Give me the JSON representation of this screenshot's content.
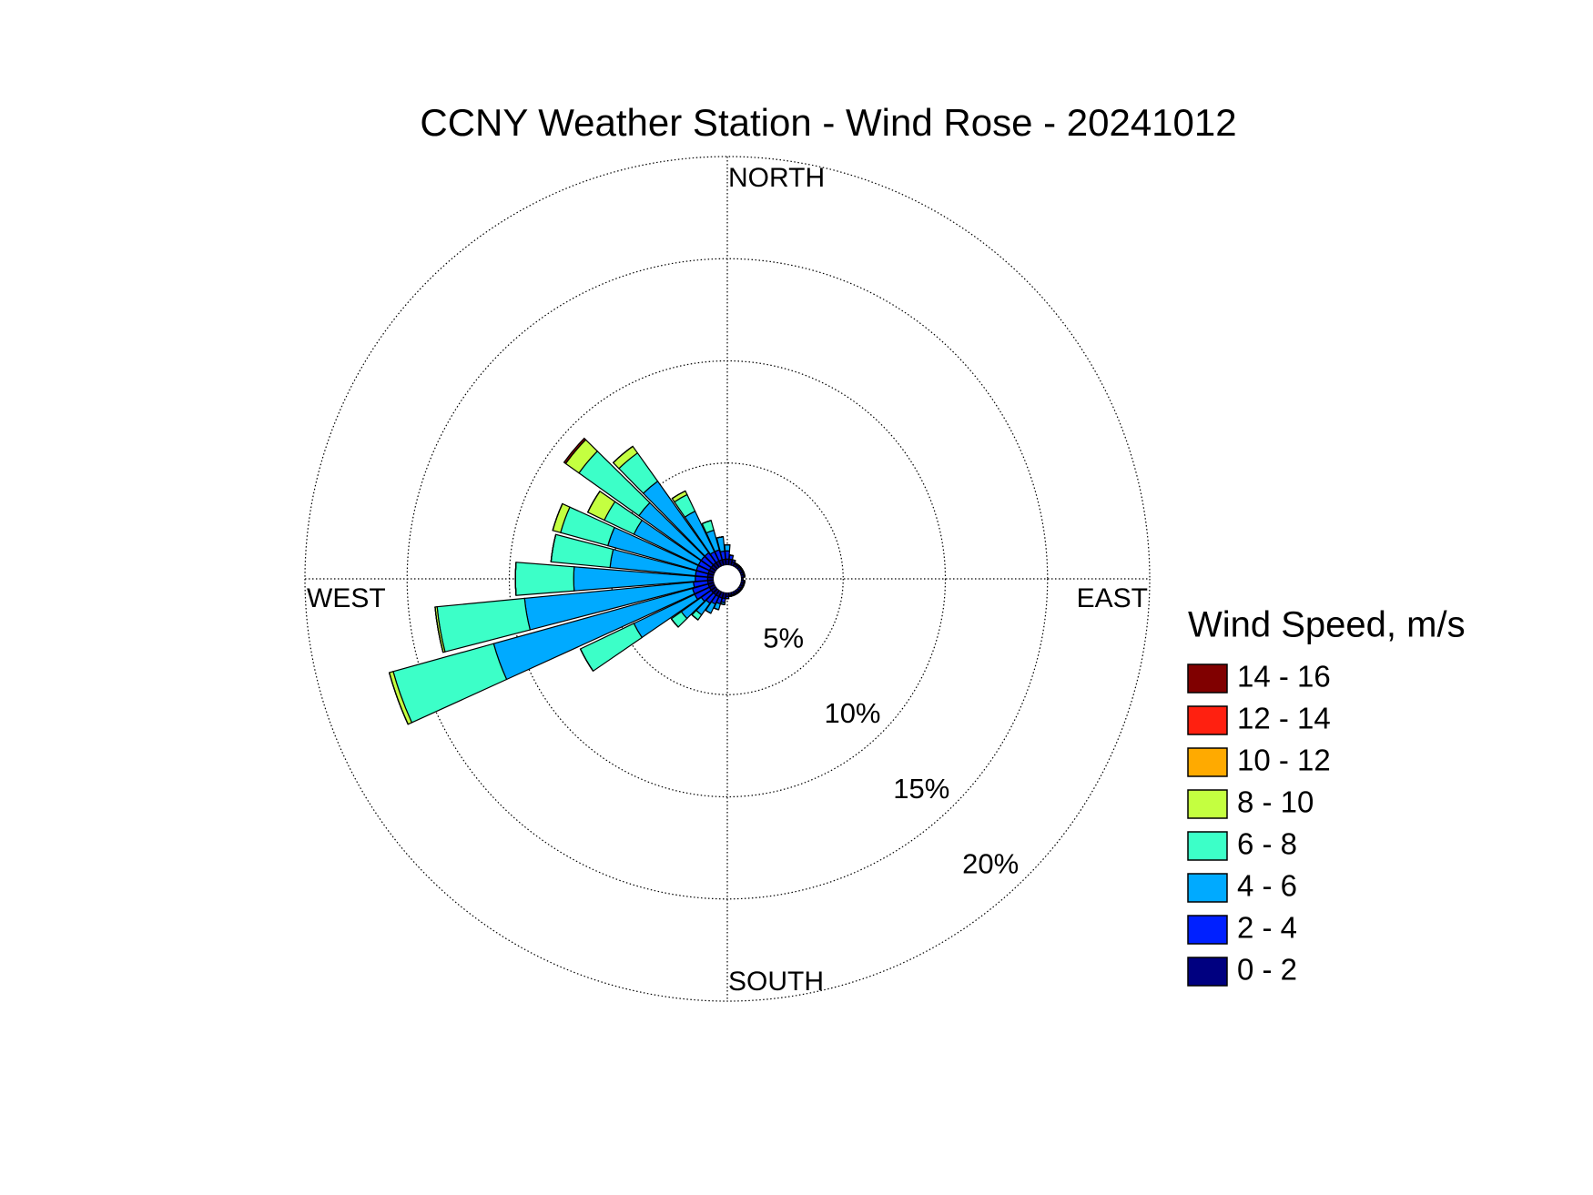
{
  "chart_data": {
    "type": "windrose",
    "title": "CCNY Weather Station - Wind Rose - 20241012",
    "direction_labels": [
      "NORTH",
      "EAST",
      "SOUTH",
      "WEST"
    ],
    "legend_title": "Wind Speed, m/s",
    "x": [
      0,
      10,
      20,
      30,
      40,
      50,
      60,
      70,
      80,
      90,
      100,
      110,
      120,
      130,
      140,
      150,
      160,
      170,
      180,
      190,
      200,
      210,
      220,
      230,
      240,
      250,
      260,
      270,
      280,
      290,
      300,
      310,
      320,
      330,
      340,
      350
    ],
    "rlim": [
      0,
      20
    ],
    "rticks": [
      {
        "value": 5,
        "label": "5%"
      },
      {
        "value": 10,
        "label": "10%"
      },
      {
        "value": 15,
        "label": "15%"
      },
      {
        "value": 20,
        "label": "20%"
      }
    ],
    "grid": true,
    "series": [
      {
        "name": "0 - 2",
        "color": "#000080",
        "values": [
          0.3,
          0.3,
          0.2,
          0.15,
          0.15,
          0.15,
          0.15,
          0.15,
          0.15,
          0.1,
          0.15,
          0.15,
          0.15,
          0.15,
          0.15,
          0.15,
          0.15,
          0.15,
          0.2,
          0.3,
          0.3,
          0.3,
          0.3,
          0.3,
          0.3,
          0.3,
          0.3,
          0.3,
          0.3,
          0.3,
          0.3,
          0.3,
          0.3,
          0.3,
          0.3,
          0.3
        ]
      },
      {
        "name": "2 - 4",
        "color": "#0020ff",
        "values": [
          0.4,
          0.2,
          0.1,
          0.05,
          0.05,
          0.05,
          0.05,
          0.05,
          0.05,
          0,
          0.05,
          0.05,
          0.05,
          0.05,
          0.05,
          0.05,
          0.05,
          0.05,
          0.1,
          0.2,
          0.3,
          0.4,
          0.5,
          0.6,
          0.8,
          0.8,
          0.7,
          0.6,
          0.6,
          0.6,
          0.6,
          0.6,
          0.6,
          0.5,
          0.5,
          0.4
        ]
      },
      {
        "name": "4 - 6",
        "color": "#00aaff",
        "values": [
          0.3,
          0,
          0,
          0,
          0,
          0,
          0,
          0,
          0,
          0,
          0,
          0,
          0,
          0,
          0,
          0,
          0,
          0,
          0,
          0.1,
          0.3,
          0.5,
          0.7,
          1.2,
          3.3,
          10.1,
          8.3,
          5.95,
          4.2,
          4.5,
          3.5,
          3.75,
          4.3,
          2.2,
          1.0,
          0.7
        ]
      },
      {
        "name": "6 - 8",
        "color": "#3cffc8",
        "values": [
          0,
          0,
          0,
          0,
          0,
          0,
          0,
          0,
          0,
          0,
          0,
          0,
          0,
          0,
          0,
          0,
          0,
          0,
          0,
          0,
          0,
          0,
          0.3,
          0.6,
          2.9,
          5.1,
          4.3,
          2.85,
          2.9,
          2.4,
          1.6,
          3.6,
          1.7,
          0.9,
          0.5,
          0
        ]
      },
      {
        "name": "8 - 10",
        "color": "#c4ff40",
        "values": [
          0,
          0,
          0,
          0,
          0,
          0,
          0,
          0,
          0,
          0,
          0,
          0,
          0,
          0,
          0,
          0,
          0,
          0,
          0,
          0,
          0,
          0,
          0,
          0,
          0,
          0.2,
          0.1,
          0,
          0,
          0.4,
          0.9,
          0.8,
          0.4,
          0.2,
          0,
          0
        ]
      },
      {
        "name": "10 - 12",
        "color": "#ffaa00",
        "values": [
          0,
          0,
          0,
          0,
          0,
          0,
          0,
          0,
          0,
          0,
          0,
          0,
          0,
          0,
          0,
          0,
          0,
          0,
          0,
          0,
          0,
          0,
          0,
          0,
          0,
          0,
          0,
          0,
          0,
          0,
          0,
          0,
          0,
          0,
          0,
          0
        ]
      },
      {
        "name": "12 - 14",
        "color": "#ff2010",
        "values": [
          0,
          0,
          0,
          0,
          0,
          0,
          0,
          0,
          0,
          0,
          0,
          0,
          0,
          0,
          0,
          0,
          0,
          0,
          0,
          0,
          0,
          0,
          0,
          0,
          0,
          0,
          0,
          0,
          0,
          0,
          0,
          0,
          0,
          0,
          0,
          0
        ]
      },
      {
        "name": "14 - 16",
        "color": "#800000",
        "values": [
          0,
          0,
          0,
          0,
          0,
          0,
          0,
          0,
          0,
          0,
          0,
          0,
          0,
          0,
          0,
          0,
          0,
          0,
          0,
          0,
          0,
          0,
          0,
          0,
          0,
          0,
          0,
          0,
          0,
          0,
          0,
          0.1,
          0,
          0,
          0,
          0
        ]
      }
    ]
  }
}
